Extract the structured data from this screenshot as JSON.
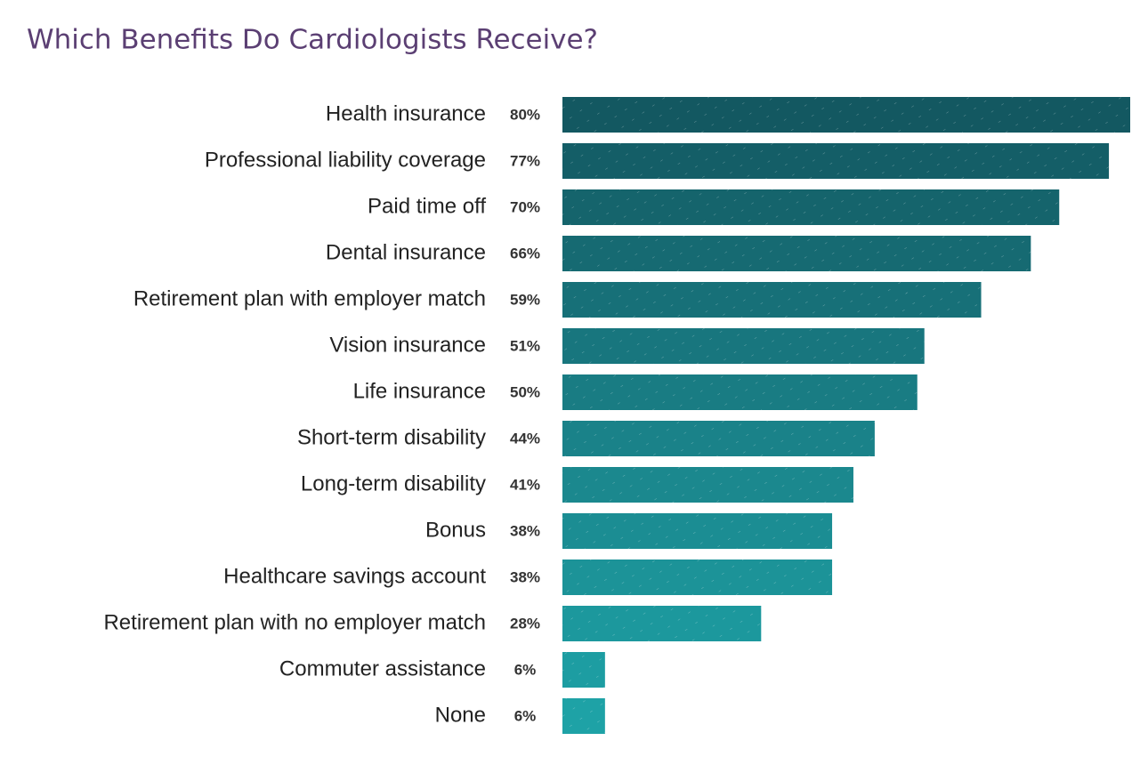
{
  "chart_data": {
    "type": "bar",
    "orientation": "horizontal",
    "title": "Which Benefits Do Cardiologists Receive?",
    "categories": [
      "Health insurance",
      "Professional liability coverage",
      "Paid time off",
      "Dental insurance",
      "Retirement plan with employer match",
      "Vision insurance",
      "Life insurance",
      "Short-term disability",
      "Long-term disability",
      "Bonus",
      "Healthcare savings account",
      "Retirement plan with no employer match",
      "Commuter assistance",
      "None"
    ],
    "values": [
      80,
      77,
      70,
      66,
      59,
      51,
      50,
      44,
      41,
      38,
      38,
      28,
      6,
      6
    ],
    "value_labels": [
      "80%",
      "77%",
      "70%",
      "66%",
      "59%",
      "51%",
      "50%",
      "44%",
      "41%",
      "38%",
      "38%",
      "28%",
      "6%",
      "6%"
    ],
    "colors": [
      "#135861",
      "#145e67",
      "#15646c",
      "#166a72",
      "#177078",
      "#18767e",
      "#197c83",
      "#1a8289",
      "#1b888e",
      "#1b8d93",
      "#1c9398",
      "#1c989d",
      "#1d9da2",
      "#1ea2a6"
    ]
  }
}
